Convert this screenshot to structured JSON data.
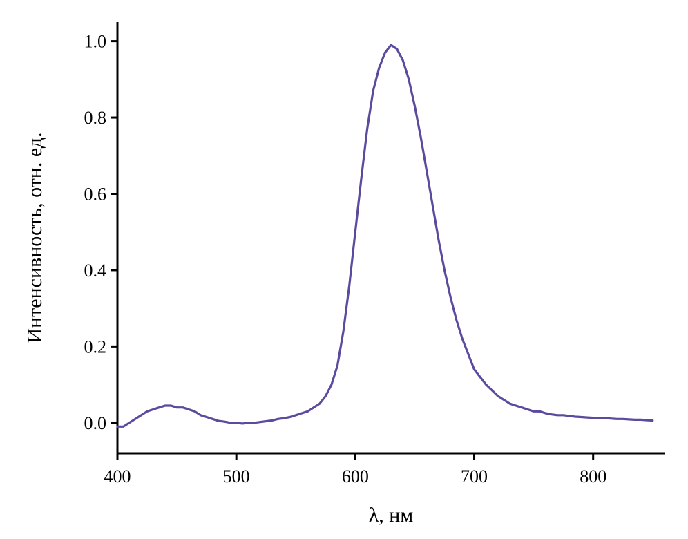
{
  "chart_data": {
    "type": "line",
    "title": "",
    "xlabel": "λ, нм",
    "ylabel": "Интенсивность, отн. ед.",
    "xlim": [
      400,
      860
    ],
    "ylim": [
      -0.08,
      1.05
    ],
    "xticks": [
      400,
      500,
      600,
      700,
      800
    ],
    "yticks": [
      0.0,
      0.2,
      0.4,
      0.6,
      0.8,
      1.0
    ],
    "xtick_labels": [
      "400",
      "500",
      "600",
      "700",
      "800"
    ],
    "ytick_labels": [
      "0.0",
      "0.2",
      "0.4",
      "0.6",
      "0.8",
      "1.0"
    ],
    "grid": false,
    "legend": "none",
    "series": [
      {
        "color": "#5b4a9e",
        "x": [
          400,
          405,
          410,
          415,
          420,
          425,
          430,
          435,
          440,
          445,
          450,
          455,
          460,
          465,
          470,
          475,
          480,
          485,
          490,
          495,
          500,
          505,
          510,
          515,
          520,
          525,
          530,
          535,
          540,
          545,
          550,
          555,
          560,
          565,
          570,
          575,
          580,
          585,
          590,
          595,
          600,
          605,
          610,
          615,
          620,
          625,
          630,
          635,
          640,
          645,
          650,
          655,
          660,
          665,
          670,
          675,
          680,
          685,
          690,
          695,
          700,
          705,
          710,
          715,
          720,
          725,
          730,
          735,
          740,
          745,
          750,
          755,
          760,
          765,
          770,
          775,
          780,
          785,
          790,
          795,
          800,
          805,
          810,
          815,
          820,
          825,
          830,
          835,
          840,
          845,
          850
        ],
        "y": [
          -0.01,
          -0.01,
          0.0,
          0.01,
          0.02,
          0.03,
          0.035,
          0.04,
          0.045,
          0.045,
          0.04,
          0.04,
          0.035,
          0.03,
          0.02,
          0.015,
          0.01,
          0.005,
          0.003,
          0.0,
          0.0,
          -0.002,
          0.0,
          0.0,
          0.002,
          0.004,
          0.006,
          0.01,
          0.012,
          0.015,
          0.02,
          0.025,
          0.03,
          0.04,
          0.05,
          0.07,
          0.1,
          0.15,
          0.24,
          0.36,
          0.5,
          0.64,
          0.77,
          0.87,
          0.93,
          0.97,
          0.99,
          0.98,
          0.95,
          0.9,
          0.83,
          0.75,
          0.66,
          0.57,
          0.48,
          0.4,
          0.33,
          0.27,
          0.22,
          0.18,
          0.14,
          0.12,
          0.1,
          0.085,
          0.07,
          0.06,
          0.05,
          0.045,
          0.04,
          0.035,
          0.03,
          0.03,
          0.025,
          0.022,
          0.02,
          0.02,
          0.018,
          0.016,
          0.015,
          0.014,
          0.013,
          0.012,
          0.012,
          0.011,
          0.01,
          0.01,
          0.009,
          0.008,
          0.008,
          0.007,
          0.006
        ]
      }
    ]
  }
}
